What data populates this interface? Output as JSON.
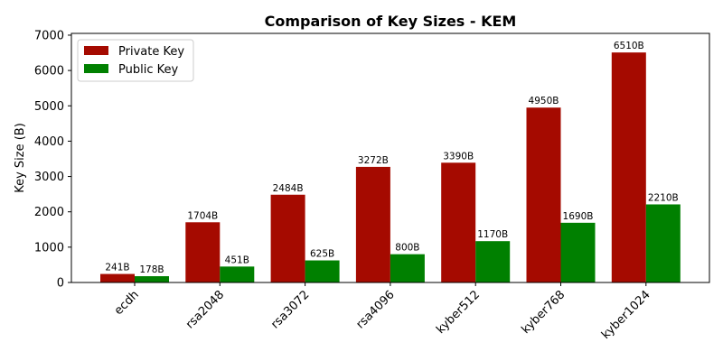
{
  "chart_data": {
    "type": "bar",
    "title": "Comparison of Key Sizes - KEM",
    "xlabel": "",
    "ylabel": "Key Size (B)",
    "ylim": [
      0,
      7000
    ],
    "yticks": [
      0,
      1000,
      2000,
      3000,
      4000,
      5000,
      6000,
      7000
    ],
    "categories": [
      "ecdh",
      "rsa2048",
      "rsa3072",
      "rsa4096",
      "kyber512",
      "kyber768",
      "kyber1024"
    ],
    "legend_position": "top-left",
    "grid": false,
    "series": [
      {
        "name": "Private Key",
        "color": "#a50a00",
        "values": [
          241,
          1704,
          2484,
          3272,
          3390,
          4950,
          6510
        ],
        "labels": [
          "241B",
          "1704B",
          "2484B",
          "3272B",
          "3390B",
          "4950B",
          "6510B"
        ]
      },
      {
        "name": "Public Key",
        "color": "#008000",
        "values": [
          178,
          451,
          625,
          800,
          1170,
          1690,
          2210
        ],
        "labels": [
          "178B",
          "451B",
          "625B",
          "800B",
          "1170B",
          "1690B",
          "2210B"
        ]
      }
    ]
  }
}
